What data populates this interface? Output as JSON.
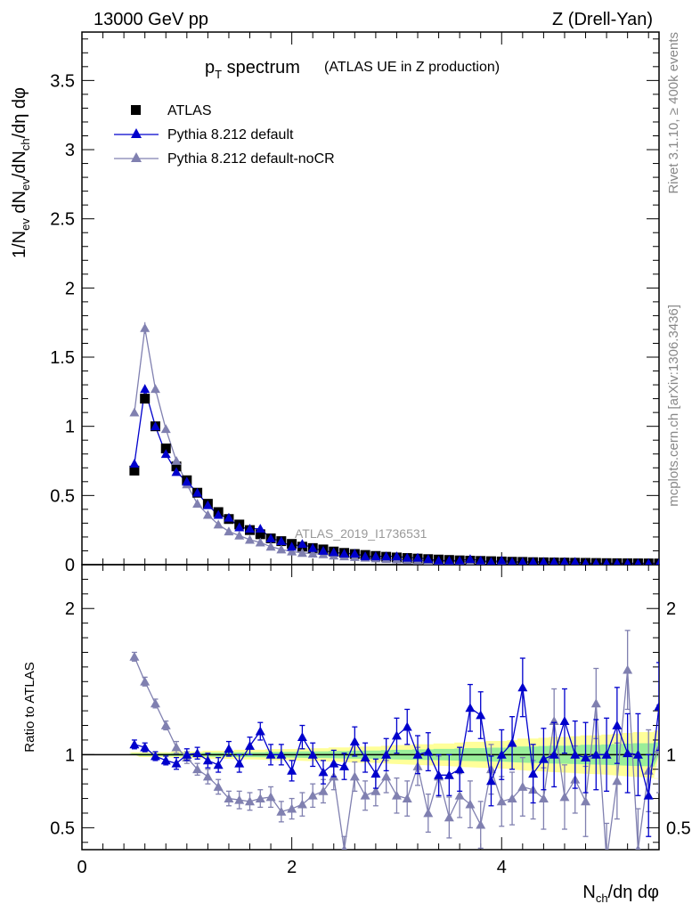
{
  "header": {
    "left": "13000 GeV pp",
    "right": "Z (Drell-Yan)"
  },
  "side_text": {
    "rivet": "Rivet 3.1.10, ≥ 400k events",
    "mcplots": "mcplots.cern.ch [arXiv:1306.3436]"
  },
  "chart_data": {
    "type": "line",
    "title_main": "p",
    "title_sub": "T",
    "title_rest": " spectrum",
    "title_extra": "(ATLAS UE in Z production)",
    "watermark": "ATLAS_2019_I1736531",
    "ylabel_parts": [
      "1/N",
      "ev",
      " dN",
      "ev",
      "/dN",
      "ch",
      "/dη dφ"
    ],
    "ratio_ylabel": "Ratio to ATLAS",
    "xlabel_parts": [
      "N",
      "ch",
      "/dη dφ"
    ],
    "xlim": [
      0,
      5.5
    ],
    "ylim_main": [
      0,
      3.85
    ],
    "ylim_ratio": [
      0.35,
      2.3
    ],
    "x_ticks": [
      "0",
      "2",
      "4"
    ],
    "y_ticks_main": [
      "0",
      "0.5",
      "1",
      "1.5",
      "2",
      "2.5",
      "3",
      "3.5"
    ],
    "y_ticks_ratio": [
      "0.5",
      "1",
      "2"
    ],
    "colors": {
      "data": "#000000",
      "default": "#0000cc",
      "nocr": "#8080b0",
      "band_yellow": "#ffff99",
      "band_green": "#99ee99"
    },
    "x": [
      0.5,
      0.6,
      0.7,
      0.8,
      0.9,
      1.0,
      1.1,
      1.2,
      1.3,
      1.4,
      1.5,
      1.6,
      1.7,
      1.8,
      1.9,
      2.0,
      2.1,
      2.2,
      2.3,
      2.4,
      2.5,
      2.6,
      2.7,
      2.8,
      2.9,
      3.0,
      3.1,
      3.2,
      3.3,
      3.4,
      3.5,
      3.6,
      3.7,
      3.8,
      3.9,
      4.0,
      4.1,
      4.2,
      4.3,
      4.4,
      4.5,
      4.6,
      4.7,
      4.8,
      4.9,
      5.0,
      5.1,
      5.2,
      5.3,
      5.4,
      5.5
    ],
    "series": [
      {
        "name": "ATLAS",
        "marker": "square",
        "values": [
          0.68,
          1.2,
          1.0,
          0.84,
          0.71,
          0.61,
          0.52,
          0.44,
          0.38,
          0.33,
          0.29,
          0.25,
          0.22,
          0.19,
          0.17,
          0.15,
          0.13,
          0.12,
          0.11,
          0.095,
          0.085,
          0.077,
          0.07,
          0.063,
          0.057,
          0.052,
          0.048,
          0.044,
          0.04,
          0.037,
          0.034,
          0.031,
          0.029,
          0.027,
          0.025,
          0.023,
          0.021,
          0.02,
          0.018,
          0.017,
          0.016,
          0.015,
          0.014,
          0.013,
          0.012,
          0.011,
          0.0105,
          0.01,
          0.0095,
          0.009,
          0.0085
        ]
      },
      {
        "name": "Pythia 8.212 default",
        "marker": "triangle",
        "values": [
          0.73,
          1.27,
          1.0,
          0.8,
          0.67,
          0.6,
          0.52,
          0.43,
          0.36,
          0.34,
          0.27,
          0.26,
          0.26,
          0.19,
          0.17,
          0.13,
          0.15,
          0.12,
          0.1,
          0.09,
          0.08,
          0.08,
          0.06,
          0.06,
          0.06,
          0.06,
          0.05,
          0.05,
          0.04,
          0.03,
          0.03,
          0.03,
          0.04,
          0.03,
          0.02,
          0.03,
          0.02,
          0.02,
          0.02,
          0.02,
          0.02,
          0.02,
          0.02,
          0.01,
          0.01,
          0.01,
          0.01,
          0.01,
          0.01,
          0.01,
          0.01
        ],
        "ratio": [
          1.07,
          1.05,
          0.99,
          0.96,
          0.94,
          1.0,
          1.01,
          0.96,
          0.93,
          1.04,
          0.94,
          1.06,
          1.16,
          1.0,
          1.0,
          0.89,
          1.12,
          1.0,
          0.88,
          0.94,
          0.92,
          1.09,
          0.98,
          0.87,
          1.0,
          1.13,
          1.19,
          1.0,
          1.02,
          0.86,
          0.86,
          0.9,
          1.32,
          1.27,
          0.82,
          1.0,
          1.08,
          1.46,
          0.87,
          0.97,
          1.0,
          1.23,
          1.0,
          0.98,
          1.0,
          1.0,
          1.2,
          1.01,
          1.0,
          0.72,
          1.33
        ],
        "ratio_err": [
          0.03,
          0.03,
          0.03,
          0.03,
          0.04,
          0.04,
          0.04,
          0.05,
          0.05,
          0.05,
          0.06,
          0.06,
          0.06,
          0.07,
          0.07,
          0.07,
          0.08,
          0.08,
          0.08,
          0.09,
          0.09,
          0.1,
          0.1,
          0.1,
          0.11,
          0.12,
          0.12,
          0.13,
          0.13,
          0.14,
          0.14,
          0.15,
          0.16,
          0.16,
          0.17,
          0.17,
          0.18,
          0.2,
          0.2,
          0.21,
          0.22,
          0.22,
          0.23,
          0.24,
          0.24,
          0.25,
          0.26,
          0.27,
          0.28,
          0.28,
          0.3
        ]
      },
      {
        "name": "Pythia 8.212 default-noCR",
        "marker": "triangle",
        "values": [
          1.1,
          1.71,
          1.27,
          0.98,
          0.75,
          0.58,
          0.44,
          0.36,
          0.29,
          0.24,
          0.21,
          0.18,
          0.16,
          0.13,
          0.11,
          0.095,
          0.085,
          0.08,
          0.075,
          0.065,
          0.06,
          0.055,
          0.05,
          0.045,
          0.04,
          0.038,
          0.034,
          0.031,
          0.028,
          0.026,
          0.024,
          0.022,
          0.02,
          0.019,
          0.018,
          0.016,
          0.015,
          0.014,
          0.013,
          0.012,
          0.011,
          0.01,
          0.0095,
          0.009,
          0.0085,
          0.008,
          0.0075,
          0.007,
          0.0065,
          0.006,
          0.0055
        ],
        "ratio": [
          1.67,
          1.5,
          1.35,
          1.2,
          1.05,
          0.98,
          0.9,
          0.85,
          0.78,
          0.7,
          0.69,
          0.68,
          0.7,
          0.71,
          0.61,
          0.63,
          0.66,
          0.72,
          0.75,
          0.85,
          0.35,
          0.85,
          0.72,
          0.75,
          0.85,
          0.72,
          0.7,
          0.92,
          0.6,
          0.85,
          0.57,
          0.72,
          0.66,
          0.52,
          0.9,
          0.68,
          0.7,
          0.78,
          0.76,
          0.7,
          1.23,
          0.71,
          0.83,
          0.68,
          1.35,
          0.28,
          0.82,
          1.58,
          0.35,
          0.89,
          1.04
        ],
        "ratio_err": [
          0.03,
          0.03,
          0.03,
          0.03,
          0.04,
          0.04,
          0.04,
          0.05,
          0.05,
          0.05,
          0.06,
          0.06,
          0.06,
          0.07,
          0.07,
          0.07,
          0.08,
          0.08,
          0.08,
          0.09,
          0.09,
          0.1,
          0.1,
          0.1,
          0.11,
          0.12,
          0.12,
          0.13,
          0.13,
          0.14,
          0.14,
          0.15,
          0.16,
          0.16,
          0.17,
          0.17,
          0.18,
          0.2,
          0.2,
          0.21,
          0.22,
          0.22,
          0.23,
          0.24,
          0.24,
          0.25,
          0.26,
          0.27,
          0.28,
          0.28,
          0.3
        ]
      }
    ]
  }
}
